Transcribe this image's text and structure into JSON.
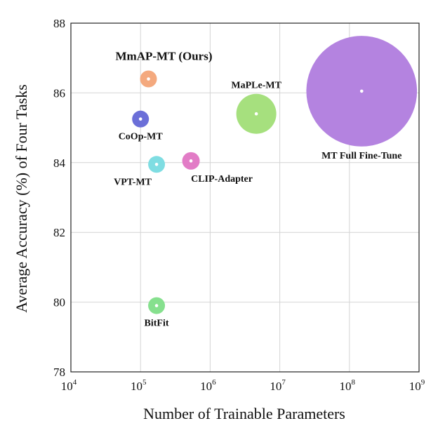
{
  "chart_data": {
    "type": "scatter",
    "subtype": "bubble",
    "xlabel": "Number of Trainable Parameters",
    "ylabel": "Average Accuracy (%) of Four Tasks",
    "xscale": "log",
    "xlim": [
      10000,
      1000000000
    ],
    "ylim": [
      78,
      88
    ],
    "xticks": [
      {
        "base": "10",
        "exp": "4"
      },
      {
        "base": "10",
        "exp": "5"
      },
      {
        "base": "10",
        "exp": "6"
      },
      {
        "base": "10",
        "exp": "7"
      },
      {
        "base": "10",
        "exp": "8"
      },
      {
        "base": "10",
        "exp": "9"
      }
    ],
    "yticks": [
      "78",
      "80",
      "82",
      "84",
      "86",
      "88"
    ],
    "grid": true,
    "points": [
      {
        "label": "MmAP-MT (Ours)",
        "x": 130000,
        "y": 86.4,
        "color": "#f4a97e",
        "label_color": "#e8130f",
        "highlight": true
      },
      {
        "label": "CoOp-MT",
        "x": 100000,
        "y": 85.25,
        "color": "#6b6fd8",
        "label_color": "#111111"
      },
      {
        "label": "VPT-MT",
        "x": 170000,
        "y": 83.95,
        "color": "#7fdde2",
        "label_color": "#111111"
      },
      {
        "label": "CLIP-Adapter",
        "x": 530000,
        "y": 84.05,
        "color": "#e27cc6",
        "label_color": "#111111"
      },
      {
        "label": "MaPLe-MT",
        "x": 4600000,
        "y": 85.4,
        "color": "#a6e07e",
        "label_color": "#111111"
      },
      {
        "label": "MT Full Fine-Tune",
        "x": 150000000,
        "y": 86.05,
        "color": "#b483e0",
        "label_color": "#111111"
      },
      {
        "label": "BitFit",
        "x": 170000,
        "y": 79.9,
        "color": "#86e08e",
        "label_color": "#111111"
      }
    ]
  }
}
